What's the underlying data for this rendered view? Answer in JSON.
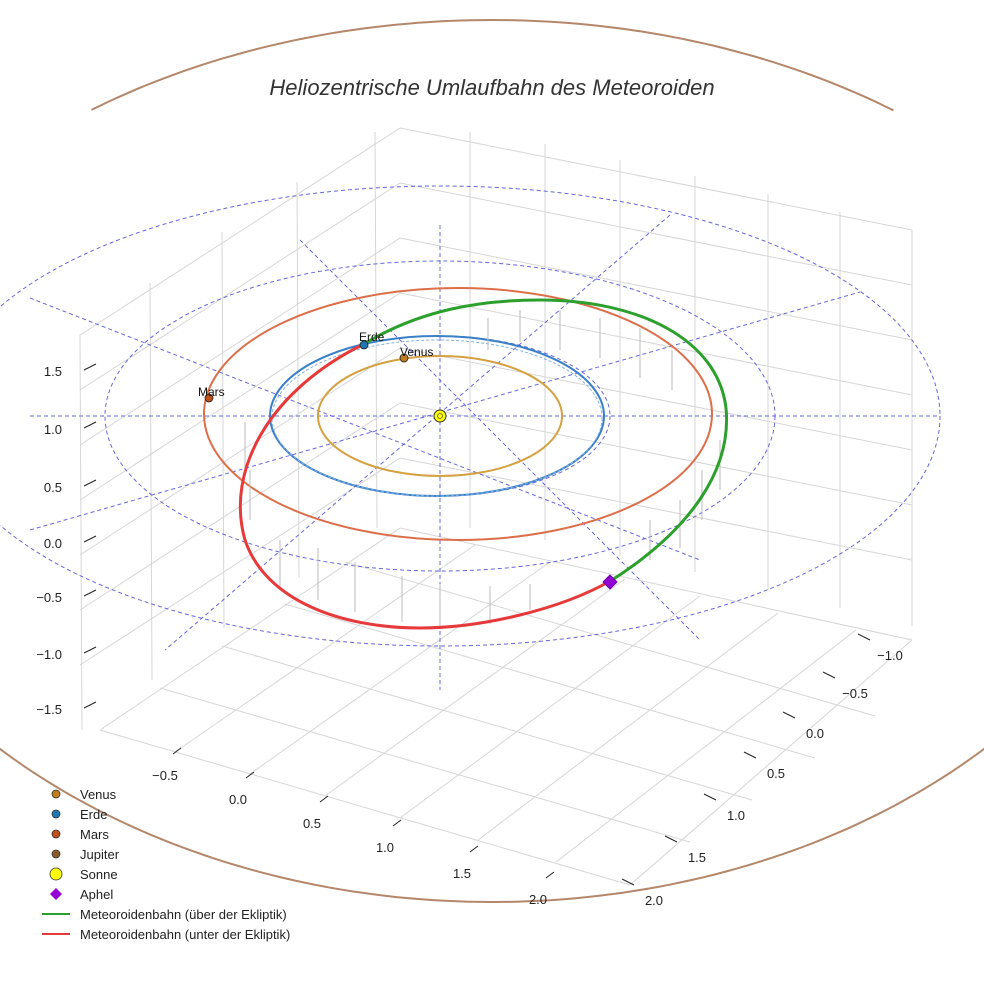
{
  "chart_data": {
    "type": "3d-line",
    "title": "Heliozentrische Umlaufbahn des Meteoroiden",
    "axis_ticks": {
      "z": [
        "1.5",
        "1.0",
        "0.5",
        "0.0",
        "−0.5",
        "−1.0",
        "−1.5"
      ],
      "x": [
        "−0.5",
        "0.0",
        "0.5",
        "1.0",
        "1.5",
        "2.0"
      ],
      "y": [
        "−1.0",
        "−0.5",
        "0.0",
        "0.5",
        "1.0",
        "1.5",
        "2.0"
      ]
    },
    "planets": [
      {
        "name": "Venus",
        "radius_au": 0.72,
        "position_label": "Venus",
        "color": "#c17d1a",
        "orbit_color": "#d4a040"
      },
      {
        "name": "Erde",
        "radius_au": 1.0,
        "position_label": "Erde",
        "color": "#1f77b4",
        "orbit_color": "#3a80c8"
      },
      {
        "name": "Mars",
        "radius_au": 1.52,
        "position_label": "Mars",
        "color": "#c0501a",
        "orbit_color": "#dc6e4a"
      },
      {
        "name": "Jupiter",
        "radius_au": 5.2,
        "position_label": "",
        "color": "#8b5a2b",
        "orbit_color": "#b5876a"
      }
    ],
    "sun": {
      "name": "Sonne",
      "color": "#ffff00"
    },
    "aphel": {
      "name": "Aphel",
      "color": "#9400d3"
    },
    "meteoroid": {
      "above_label": "Meteoroidenbahn (über der Ekliptik)",
      "above_color": "#2ca02c",
      "below_label": "Meteoroidenbahn (unter der Ekliptik)",
      "below_color": "#e8393a"
    },
    "legend": [
      {
        "label": "Venus",
        "kind": "dot",
        "color": "#c17d1a"
      },
      {
        "label": "Erde",
        "kind": "dot",
        "color": "#1f77b4"
      },
      {
        "label": "Mars",
        "kind": "dot",
        "color": "#c0501a"
      },
      {
        "label": "Jupiter",
        "kind": "dot",
        "color": "#8b5a2b"
      },
      {
        "label": "Sonne",
        "kind": "bigdot",
        "color": "#ffff00"
      },
      {
        "label": "Aphel",
        "kind": "diamond",
        "color": "#9400d3"
      },
      {
        "label": "Meteoroidenbahn (über der Ekliptik)",
        "kind": "line",
        "color": "#2ca02c"
      },
      {
        "label": "Meteoroidenbahn (unter der Ekliptik)",
        "kind": "line",
        "color": "#e8393a"
      }
    ],
    "legend_position": "bottom-left",
    "grid": true
  }
}
